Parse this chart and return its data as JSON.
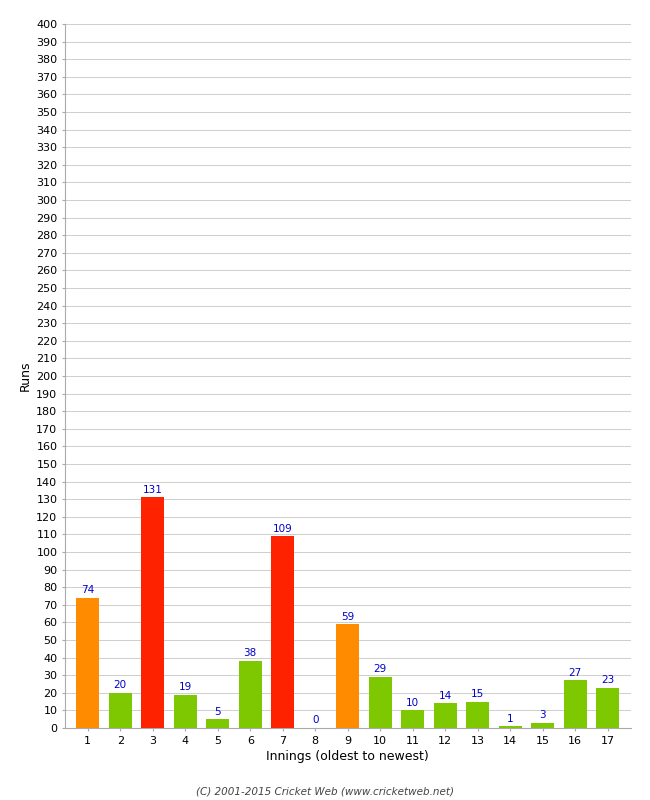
{
  "xlabel": "Innings (oldest to newest)",
  "ylabel": "Runs",
  "categories": [
    1,
    2,
    3,
    4,
    5,
    6,
    7,
    8,
    9,
    10,
    11,
    12,
    13,
    14,
    15,
    16,
    17
  ],
  "values": [
    74,
    20,
    131,
    19,
    5,
    38,
    109,
    0,
    59,
    29,
    10,
    14,
    15,
    1,
    3,
    27,
    23
  ],
  "colors": [
    "#ff8c00",
    "#7dc800",
    "#ff2200",
    "#7dc800",
    "#7dc800",
    "#7dc800",
    "#ff2200",
    "#7dc800",
    "#ff8c00",
    "#7dc800",
    "#7dc800",
    "#7dc800",
    "#7dc800",
    "#7dc800",
    "#7dc800",
    "#7dc800",
    "#7dc800"
  ],
  "ylim": [
    0,
    400
  ],
  "ytick_step": 10,
  "label_color": "#0000cc",
  "background_color": "#ffffff",
  "grid_color": "#bbbbbb",
  "footer": "(C) 2001-2015 Cricket Web (www.cricketweb.net)",
  "bar_width": 0.7
}
